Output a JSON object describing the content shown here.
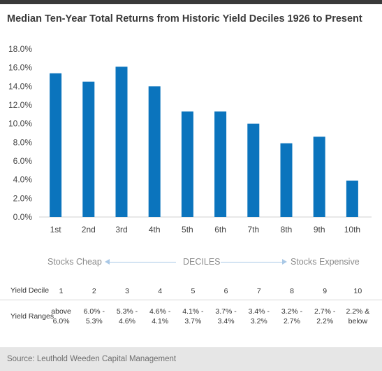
{
  "chart_data": {
    "type": "bar",
    "title": "Median Ten-Year Total Returns from Historic Yield Deciles 1926 to Present",
    "categories": [
      "1st",
      "2nd",
      "3rd",
      "4th",
      "5th",
      "6th",
      "7th",
      "8th",
      "9th",
      "10th"
    ],
    "values": [
      15.4,
      14.5,
      16.1,
      14.0,
      11.3,
      11.3,
      10.0,
      7.9,
      8.6,
      3.9
    ],
    "y_ticks": [
      "0.0%",
      "2.0%",
      "4.0%",
      "6.0%",
      "8.0%",
      "10.0%",
      "12.0%",
      "14.0%",
      "16.0%",
      "18.0%"
    ],
    "ylim": [
      0,
      18
    ],
    "grid": false,
    "bar_color": "#0b74bd"
  },
  "decile_axis": {
    "left_label": "Stocks Cheap",
    "center_label": "DECILES",
    "right_label": "Stocks Expensive",
    "arrow_color": "#a9c8e6"
  },
  "table": {
    "row1_label": "Yield Decile",
    "row2_label": "Yield Ranges",
    "deciles": [
      "1",
      "2",
      "3",
      "4",
      "5",
      "6",
      "7",
      "8",
      "9",
      "10"
    ],
    "ranges": [
      [
        "above",
        "6.0%"
      ],
      [
        "6.0% -",
        "5.3%"
      ],
      [
        "5.3% -",
        "4.6%"
      ],
      [
        "4.6% -",
        "4.1%"
      ],
      [
        "4.1% -",
        "3.7%"
      ],
      [
        "3.7% -",
        "3.4%"
      ],
      [
        "3.4% -",
        "3.2%"
      ],
      [
        "3.2% -",
        "2.7%"
      ],
      [
        "2.7% -",
        "2.2%"
      ],
      [
        "2.2% &",
        "below"
      ]
    ]
  },
  "source": "Source: Leuthold Weeden Capital Management"
}
